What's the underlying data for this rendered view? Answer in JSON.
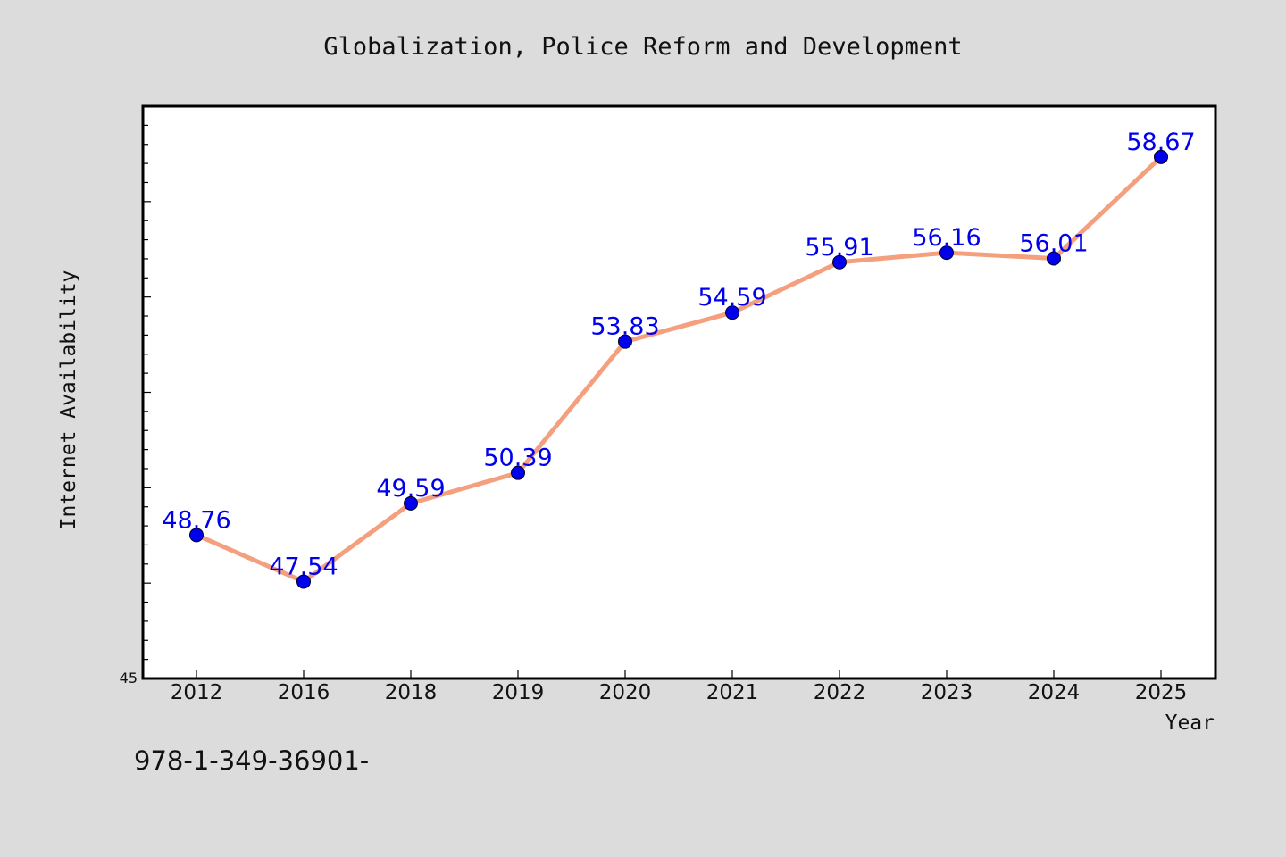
{
  "chart_data": {
    "type": "line",
    "title": "Globalization, Police Reform and Development",
    "xlabel": "Year",
    "ylabel": "Internet Availability",
    "categories": [
      "2012",
      "2016",
      "2018",
      "2019",
      "2020",
      "2021",
      "2022",
      "2023",
      "2024",
      "2025"
    ],
    "series": [
      {
        "values": [
          48.76,
          47.54,
          49.59,
          50.39,
          53.83,
          54.59,
          55.91,
          56.16,
          56.01,
          58.67
        ],
        "labels": [
          "48.76",
          "47.54",
          "49.59",
          "50.39",
          "53.83",
          "54.59",
          "55.91",
          "56.16",
          "56.01",
          "58.67"
        ],
        "color": "#f4a07e"
      }
    ],
    "ylim": [
      45,
      60
    ],
    "yticks": [
      {
        "value": 45,
        "label": "45"
      }
    ],
    "grid": false,
    "marker_color": "#0000ee",
    "label_color": "#0000ee"
  },
  "footer_text": "978-1-349-36901-"
}
